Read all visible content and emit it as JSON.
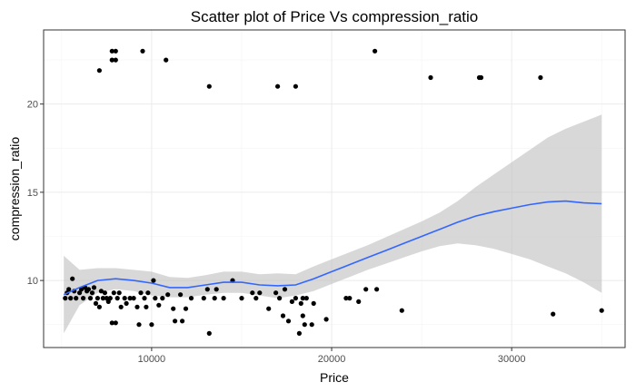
{
  "chart_data": {
    "type": "scatter",
    "title": "Scatter plot of Price Vs  compression_ratio",
    "xlabel": "Price",
    "ylabel": "compression_ratio",
    "xlim": [
      4000,
      36300
    ],
    "ylim": [
      6.2,
      24.2
    ],
    "x_ticks": [
      10000,
      20000,
      30000
    ],
    "x_tick_labels": [
      "10000",
      "20000",
      "30000"
    ],
    "y_ticks": [
      10,
      15,
      20
    ],
    "y_tick_labels": [
      "10",
      "15",
      "20"
    ],
    "grid": true,
    "legend": "none",
    "colors": {
      "points": "#000000",
      "smooth_line": "#3366FF",
      "confidence_band": "#BEBEBE",
      "grid_major": "#EBEBEB",
      "grid_minor": "#F4F4F4",
      "panel_border": "#333333"
    },
    "points": [
      {
        "x": 7100,
        "y": 21.9
      },
      {
        "x": 7800,
        "y": 23.0
      },
      {
        "x": 8000,
        "y": 23.0
      },
      {
        "x": 7800,
        "y": 22.5
      },
      {
        "x": 8000,
        "y": 22.5
      },
      {
        "x": 9500,
        "y": 23.0
      },
      {
        "x": 10800,
        "y": 22.5
      },
      {
        "x": 13200,
        "y": 21.0
      },
      {
        "x": 17000,
        "y": 21.0
      },
      {
        "x": 18000,
        "y": 21.0
      },
      {
        "x": 22400,
        "y": 23.0
      },
      {
        "x": 25500,
        "y": 21.5
      },
      {
        "x": 28200,
        "y": 21.5
      },
      {
        "x": 28300,
        "y": 21.5
      },
      {
        "x": 31600,
        "y": 21.5
      },
      {
        "x": 5200,
        "y": 9.0
      },
      {
        "x": 5300,
        "y": 9.3
      },
      {
        "x": 5400,
        "y": 9.5
      },
      {
        "x": 5500,
        "y": 9.0
      },
      {
        "x": 5600,
        "y": 10.1
      },
      {
        "x": 5700,
        "y": 9.4
      },
      {
        "x": 5800,
        "y": 9.0
      },
      {
        "x": 6000,
        "y": 9.3
      },
      {
        "x": 6100,
        "y": 9.5
      },
      {
        "x": 6200,
        "y": 9.0
      },
      {
        "x": 6300,
        "y": 9.6
      },
      {
        "x": 6400,
        "y": 9.4
      },
      {
        "x": 6500,
        "y": 9.5
      },
      {
        "x": 6600,
        "y": 9.0
      },
      {
        "x": 6700,
        "y": 9.3
      },
      {
        "x": 6800,
        "y": 9.6
      },
      {
        "x": 6900,
        "y": 8.7
      },
      {
        "x": 7000,
        "y": 9.0
      },
      {
        "x": 7100,
        "y": 8.5
      },
      {
        "x": 7200,
        "y": 9.4
      },
      {
        "x": 7300,
        "y": 9.0
      },
      {
        "x": 7400,
        "y": 9.3
      },
      {
        "x": 7500,
        "y": 9.0
      },
      {
        "x": 7600,
        "y": 8.8
      },
      {
        "x": 7700,
        "y": 9.0
      },
      {
        "x": 7800,
        "y": 7.6
      },
      {
        "x": 7900,
        "y": 9.3
      },
      {
        "x": 8000,
        "y": 7.6
      },
      {
        "x": 8100,
        "y": 9.0
      },
      {
        "x": 8200,
        "y": 9.3
      },
      {
        "x": 8300,
        "y": 8.5
      },
      {
        "x": 8500,
        "y": 9.0
      },
      {
        "x": 8600,
        "y": 8.7
      },
      {
        "x": 8800,
        "y": 9.0
      },
      {
        "x": 9000,
        "y": 9.0
      },
      {
        "x": 9200,
        "y": 8.5
      },
      {
        "x": 9300,
        "y": 7.5
      },
      {
        "x": 9400,
        "y": 9.3
      },
      {
        "x": 9600,
        "y": 9.0
      },
      {
        "x": 9700,
        "y": 8.5
      },
      {
        "x": 9800,
        "y": 9.3
      },
      {
        "x": 10000,
        "y": 7.5
      },
      {
        "x": 10100,
        "y": 10.0
      },
      {
        "x": 10200,
        "y": 9.0
      },
      {
        "x": 10400,
        "y": 8.6
      },
      {
        "x": 10600,
        "y": 9.0
      },
      {
        "x": 10900,
        "y": 9.2
      },
      {
        "x": 11200,
        "y": 8.4
      },
      {
        "x": 11300,
        "y": 7.7
      },
      {
        "x": 11600,
        "y": 9.2
      },
      {
        "x": 11700,
        "y": 7.7
      },
      {
        "x": 11900,
        "y": 8.4
      },
      {
        "x": 12200,
        "y": 9.0
      },
      {
        "x": 12900,
        "y": 9.0
      },
      {
        "x": 13100,
        "y": 9.5
      },
      {
        "x": 13200,
        "y": 7.0
      },
      {
        "x": 13500,
        "y": 9.0
      },
      {
        "x": 13600,
        "y": 9.5
      },
      {
        "x": 14000,
        "y": 9.0
      },
      {
        "x": 14500,
        "y": 10.0
      },
      {
        "x": 15000,
        "y": 9.0
      },
      {
        "x": 15600,
        "y": 9.3
      },
      {
        "x": 15800,
        "y": 9.0
      },
      {
        "x": 16000,
        "y": 9.3
      },
      {
        "x": 16500,
        "y": 8.4
      },
      {
        "x": 16900,
        "y": 9.3
      },
      {
        "x": 17100,
        "y": 9.0
      },
      {
        "x": 17300,
        "y": 8.0
      },
      {
        "x": 17400,
        "y": 9.5
      },
      {
        "x": 17600,
        "y": 7.7
      },
      {
        "x": 17800,
        "y": 8.8
      },
      {
        "x": 18000,
        "y": 9.0
      },
      {
        "x": 18200,
        "y": 7.0
      },
      {
        "x": 18300,
        "y": 8.7
      },
      {
        "x": 18400,
        "y": 9.0
      },
      {
        "x": 18400,
        "y": 8.0
      },
      {
        "x": 18500,
        "y": 7.5
      },
      {
        "x": 18600,
        "y": 9.0
      },
      {
        "x": 18900,
        "y": 7.5
      },
      {
        "x": 19000,
        "y": 8.7
      },
      {
        "x": 19700,
        "y": 7.8
      },
      {
        "x": 20800,
        "y": 9.0
      },
      {
        "x": 21000,
        "y": 9.0
      },
      {
        "x": 21500,
        "y": 8.8
      },
      {
        "x": 21900,
        "y": 9.5
      },
      {
        "x": 22500,
        "y": 9.5
      },
      {
        "x": 23900,
        "y": 8.3
      },
      {
        "x": 32300,
        "y": 8.1
      },
      {
        "x": 35000,
        "y": 8.3
      }
    ],
    "smooth": {
      "x": [
        5118,
        6000,
        7000,
        8000,
        9000,
        10000,
        11000,
        12000,
        13000,
        14000,
        15000,
        16000,
        17000,
        18000,
        19000,
        20000,
        21000,
        22000,
        23000,
        24000,
        25000,
        26000,
        27000,
        28000,
        29000,
        30000,
        31000,
        32000,
        33000,
        34000,
        35000
      ],
      "y": [
        9.2,
        9.6,
        10.0,
        10.1,
        10.0,
        9.85,
        9.6,
        9.6,
        9.75,
        9.9,
        9.9,
        9.75,
        9.7,
        9.75,
        10.1,
        10.5,
        10.9,
        11.3,
        11.7,
        12.1,
        12.5,
        12.9,
        13.3,
        13.65,
        13.9,
        14.1,
        14.3,
        14.45,
        14.5,
        14.4,
        14.35
      ],
      "lower": [
        7.0,
        8.6,
        9.3,
        9.5,
        9.4,
        9.15,
        9.05,
        9.05,
        9.2,
        9.3,
        9.3,
        9.15,
        9.0,
        9.15,
        9.4,
        9.8,
        10.2,
        10.6,
        10.95,
        11.3,
        11.65,
        11.95,
        12.1,
        12.0,
        11.8,
        11.5,
        11.2,
        10.8,
        10.4,
        9.9,
        9.3
      ],
      "upper": [
        11.4,
        10.6,
        10.7,
        10.7,
        10.6,
        10.5,
        10.2,
        10.15,
        10.3,
        10.5,
        10.5,
        10.35,
        10.4,
        10.35,
        10.8,
        11.2,
        11.6,
        12.0,
        12.45,
        12.9,
        13.35,
        13.85,
        14.5,
        15.3,
        16.0,
        16.7,
        17.4,
        18.1,
        18.6,
        19.0,
        19.4
      ]
    }
  }
}
